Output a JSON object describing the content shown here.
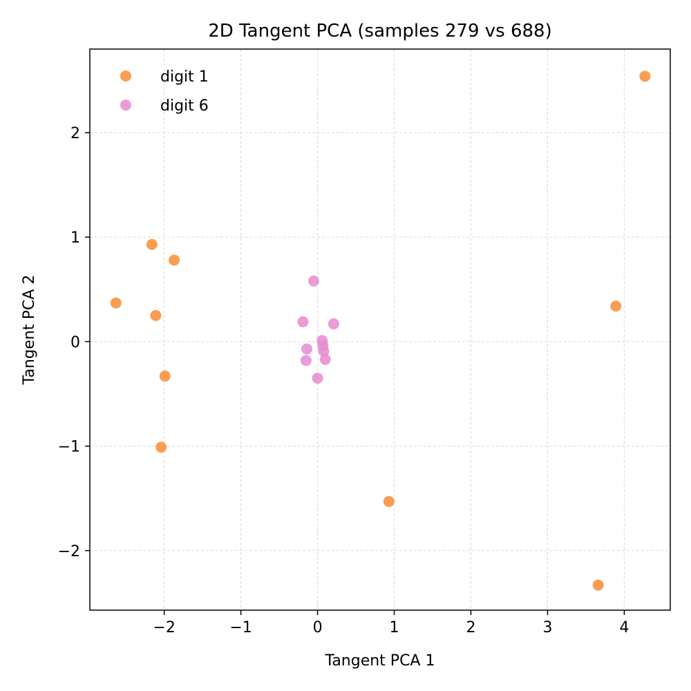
{
  "chart_data": {
    "type": "scatter",
    "title": "2D Tangent PCA (samples 279 vs 688)",
    "xlabel": "Tangent PCA 1",
    "ylabel": "Tangent PCA 2",
    "xlim": [
      -2.97,
      4.6
    ],
    "ylim": [
      -2.57,
      2.8
    ],
    "xticks": [
      -2,
      -1,
      0,
      1,
      2,
      3,
      4
    ],
    "yticks": [
      -2,
      -1,
      0,
      1,
      2
    ],
    "xtick_labels": [
      "−2",
      "−1",
      "0",
      "1",
      "2",
      "3",
      "4"
    ],
    "ytick_labels": [
      "−2",
      "−1",
      "0",
      "1",
      "2"
    ],
    "grid": true,
    "legend_position": "top-left",
    "series": [
      {
        "name": "digit 1",
        "color": "#f98d33",
        "points": [
          {
            "x": 4.27,
            "y": 2.54
          },
          {
            "x": -2.16,
            "y": 0.93
          },
          {
            "x": -1.87,
            "y": 0.78
          },
          {
            "x": -2.63,
            "y": 0.37
          },
          {
            "x": -2.11,
            "y": 0.25
          },
          {
            "x": -1.99,
            "y": -0.33
          },
          {
            "x": -2.04,
            "y": -1.01
          },
          {
            "x": 3.89,
            "y": 0.34
          },
          {
            "x": 0.93,
            "y": -1.53
          },
          {
            "x": 3.66,
            "y": -2.33
          }
        ]
      },
      {
        "name": "digit 6",
        "color": "#e58bd0",
        "points": [
          {
            "x": -0.05,
            "y": 0.58
          },
          {
            "x": -0.19,
            "y": 0.19
          },
          {
            "x": 0.21,
            "y": 0.17
          },
          {
            "x": 0.06,
            "y": 0.01
          },
          {
            "x": 0.07,
            "y": -0.04
          },
          {
            "x": 0.08,
            "y": -0.09
          },
          {
            "x": -0.14,
            "y": -0.07
          },
          {
            "x": 0.1,
            "y": -0.17
          },
          {
            "x": -0.15,
            "y": -0.18
          },
          {
            "x": 0.0,
            "y": -0.35
          }
        ]
      }
    ]
  }
}
